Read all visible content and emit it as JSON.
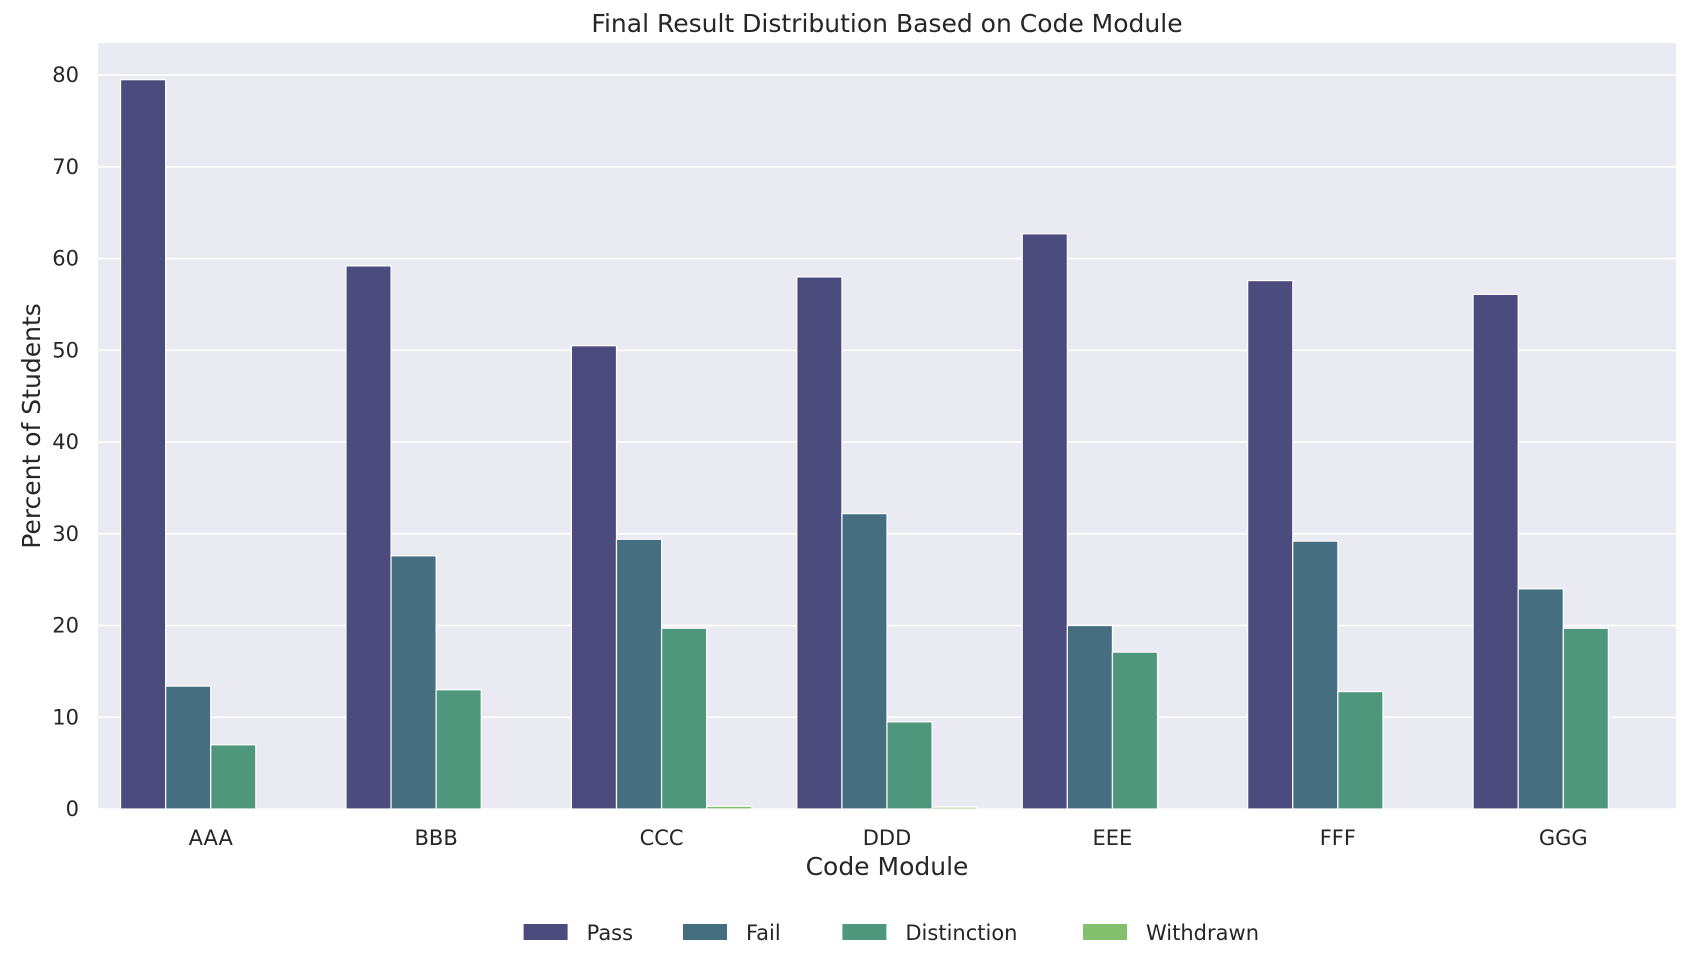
{
  "chart_data": {
    "type": "bar",
    "title": "Final Result Distribution Based on Code Module",
    "xlabel": "Code Module",
    "ylabel": "Percent of Students",
    "categories": [
      "AAA",
      "BBB",
      "CCC",
      "DDD",
      "EEE",
      "FFF",
      "GGG"
    ],
    "series": [
      {
        "name": "Pass",
        "color": "#4b4c7d",
        "values": [
          79.5,
          59.2,
          50.5,
          58.0,
          62.7,
          57.6,
          56.1
        ]
      },
      {
        "name": "Fail",
        "color": "#456f80",
        "values": [
          13.4,
          27.6,
          29.4,
          32.2,
          20.0,
          29.2,
          24.0
        ]
      },
      {
        "name": "Distinction",
        "color": "#4e977c",
        "values": [
          7.0,
          13.0,
          19.7,
          9.5,
          17.1,
          12.8,
          19.7
        ]
      },
      {
        "name": "Withdrawn",
        "color": "#84bf6e",
        "values": [
          0.0,
          0.0,
          0.3,
          0.2,
          0.0,
          0.0,
          0.0
        ]
      }
    ],
    "ylim": [
      0,
      83.5
    ],
    "yticks": [
      0,
      10,
      20,
      30,
      40,
      50,
      60,
      70,
      80
    ],
    "grid": true,
    "legend_position": "bottom-center",
    "plot_background": "#eaeaf2",
    "grid_color": "#ffffff"
  }
}
